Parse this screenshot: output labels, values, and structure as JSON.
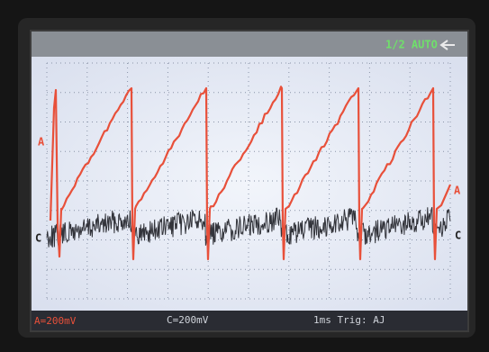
{
  "header": {
    "mode": "1/2 AUTO"
  },
  "markers": {
    "a_left": "A",
    "a_right": "A",
    "c_left": "C",
    "c_right": "C"
  },
  "footer": {
    "channel_a": "A=200mV",
    "channel_c": "C=200mV",
    "timebase": "1ms Trig: AJ"
  }
}
